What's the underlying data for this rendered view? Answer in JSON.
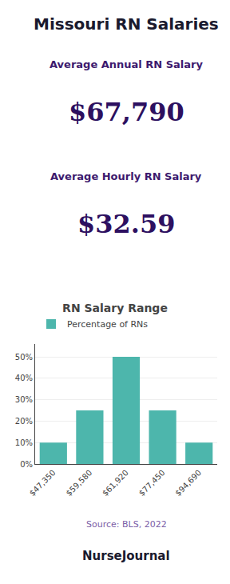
{
  "chart_data": {
    "type": "bar",
    "title": "RN Salary Range",
    "annotations": [
      "Missouri RN Salaries",
      "Average Annual RN Salary",
      "$67,790",
      "Average Hourly RN Salary",
      "$32.59",
      "Source: BLS, 2022",
      "NurseJournal"
    ],
    "categories": [
      "$47,350",
      "$59,580",
      "$61,920",
      "$77,450",
      "$94,690"
    ],
    "series": [
      {
        "name": "Percentage of RNs",
        "color": "#4DB6AC",
        "values": [
          10,
          25,
          50,
          25,
          10
        ]
      }
    ],
    "ylim": [
      0,
      56
    ],
    "yticks": [
      {
        "value": 0,
        "label": "0%"
      },
      {
        "value": 10,
        "label": "10%"
      },
      {
        "value": 20,
        "label": "20%"
      },
      {
        "value": 30,
        "label": "30%"
      },
      {
        "value": 40,
        "label": "40%"
      },
      {
        "value": 50,
        "label": "50%"
      }
    ],
    "grid": true,
    "legend": "top left"
  }
}
